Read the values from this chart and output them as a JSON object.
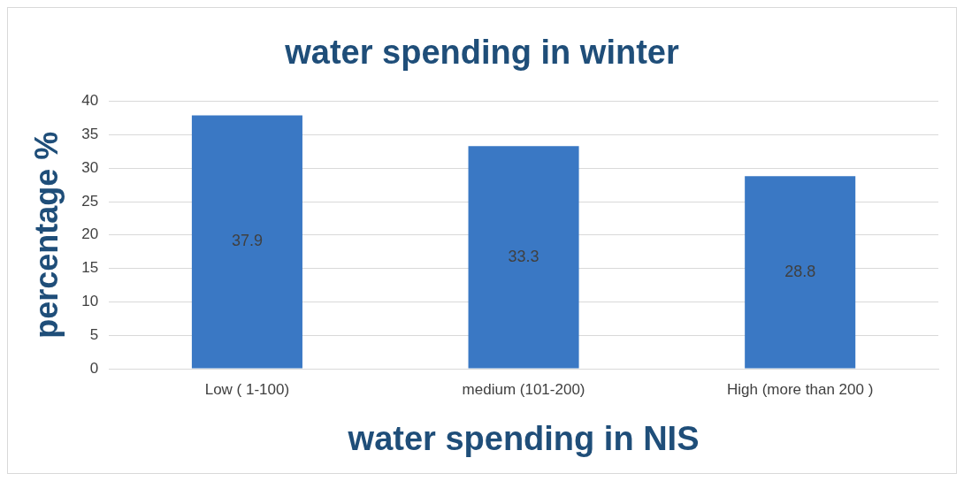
{
  "chart_data": {
    "type": "bar",
    "title": "water spending in winter",
    "xlabel": "water spending in NIS",
    "ylabel": "percentage %",
    "categories": [
      "Low ( 1-100)",
      "medium (101-200)",
      "High (more than 200 )"
    ],
    "values": [
      37.9,
      33.3,
      28.8
    ],
    "color": "#3a78c4",
    "ylim": [
      0,
      40
    ],
    "yticks": [
      0,
      5,
      10,
      15,
      20,
      25,
      30,
      35,
      40
    ],
    "grid": "y",
    "legend": false,
    "data_labels": true
  }
}
